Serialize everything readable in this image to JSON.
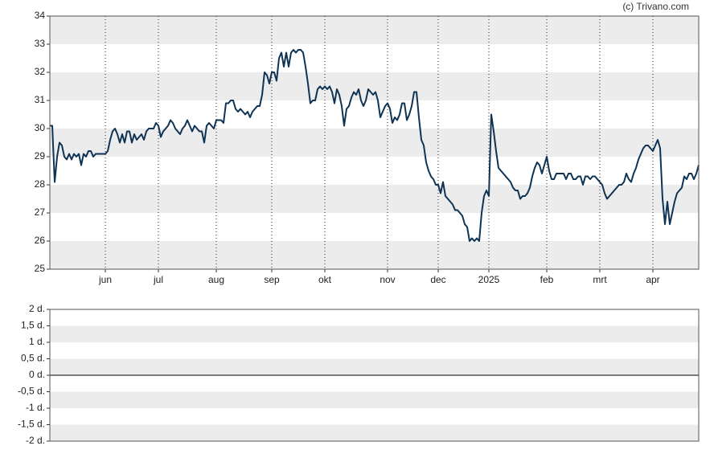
{
  "source": "(c) Trivano.com",
  "chart_data": [
    {
      "type": "line",
      "xlim": [
        0,
        269
      ],
      "xticks": [
        {
          "value": 23,
          "label": "jun"
        },
        {
          "value": 45,
          "label": "jul"
        },
        {
          "value": 69,
          "label": "aug"
        },
        {
          "value": 92,
          "label": "sep"
        },
        {
          "value": 114,
          "label": "okt"
        },
        {
          "value": 140,
          "label": "nov"
        },
        {
          "value": 161,
          "label": "dec"
        },
        {
          "value": 182,
          "label": "2025"
        },
        {
          "value": 206,
          "label": "feb"
        },
        {
          "value": 228,
          "label": "mrt"
        },
        {
          "value": 250,
          "label": "apr"
        }
      ],
      "ylim": [
        25,
        34
      ],
      "yticks": [
        25,
        26,
        27,
        28,
        29,
        30,
        31,
        32,
        33,
        34
      ],
      "grid": true,
      "color": "#0e3354",
      "values": [
        30.1,
        30.1,
        28.1,
        29,
        29.5,
        29.4,
        29,
        28.9,
        29.1,
        28.9,
        29.1,
        29,
        29.1,
        28.7,
        29.1,
        29,
        29.2,
        29.2,
        29,
        29.1,
        29.1,
        29.1,
        29.1,
        29.1,
        29.2,
        29.6,
        29.9,
        30,
        29.8,
        29.5,
        29.8,
        29.5,
        29.9,
        29.9,
        29.5,
        29.8,
        29.6,
        29.7,
        29.8,
        29.6,
        29.9,
        30,
        30,
        30,
        30.2,
        30.1,
        29.7,
        29.9,
        30,
        30.1,
        30.3,
        30.2,
        30,
        29.9,
        29.8,
        30,
        30.1,
        30.3,
        30.1,
        29.9,
        30.1,
        30,
        29.9,
        29.9,
        29.5,
        30.1,
        30.2,
        30.1,
        30,
        30.3,
        30.3,
        30.3,
        30.2,
        30.9,
        30.9,
        31,
        31,
        30.7,
        30.6,
        30.7,
        30.6,
        30.5,
        30.6,
        30.4,
        30.6,
        30.7,
        30.8,
        30.8,
        31.2,
        32,
        31.9,
        31.6,
        32,
        32,
        31.7,
        32.5,
        32.7,
        32.2,
        32.7,
        32.2,
        32.7,
        32.8,
        32.7,
        32.8,
        32.8,
        32.7,
        32.2,
        31.6,
        30.9,
        31,
        31,
        31.4,
        31.5,
        31.4,
        31.5,
        31.4,
        31.5,
        31.3,
        30.9,
        31.4,
        31.2,
        30.8,
        30.1,
        30.7,
        30.8,
        31.1,
        31.3,
        31.2,
        31.4,
        31,
        30.8,
        31,
        31.4,
        31.3,
        31.2,
        31.3,
        31,
        30.4,
        30.6,
        30.8,
        30.9,
        30.7,
        30.2,
        30.4,
        30.3,
        30.5,
        30.9,
        30.9,
        30.3,
        30.5,
        30.8,
        31.3,
        31.3,
        30.4,
        29.6,
        29.4,
        28.8,
        28.5,
        28.3,
        28.2,
        28,
        28,
        27.7,
        28.1,
        27.6,
        27.5,
        27.4,
        27.3,
        27.1,
        27.1,
        27,
        26.9,
        26.6,
        26.5,
        26,
        26.1,
        26,
        26.1,
        26,
        27,
        27.6,
        27.8,
        27.6,
        30.5,
        29.9,
        29.2,
        28.6,
        28.5,
        28.4,
        28.3,
        28.2,
        28.1,
        27.9,
        27.8,
        27.8,
        27.5,
        27.6,
        27.6,
        27.7,
        27.9,
        28.3,
        28.6,
        28.8,
        28.7,
        28.4,
        28.7,
        29,
        28.5,
        28.2,
        28.2,
        28.4,
        28.4,
        28.4,
        28.4,
        28.2,
        28.4,
        28.4,
        28.2,
        28.2,
        28.3,
        28.3,
        28,
        28.3,
        28.3,
        28.2,
        28.3,
        28.3,
        28.2,
        28.1,
        28,
        27.7,
        27.5,
        27.6,
        27.7,
        27.8,
        27.9,
        28,
        28,
        28.1,
        28.4,
        28.2,
        28.1,
        28.4,
        28.6,
        28.9,
        29.1,
        29.3,
        29.4,
        29.4,
        29.3,
        29.2,
        29.4,
        29.6,
        29.3,
        27.5,
        26.6,
        27.4,
        26.6,
        27,
        27.4,
        27.7,
        27.8,
        27.9,
        28.3,
        28.2,
        28.4,
        28.4,
        28.2,
        28.4,
        28.7
      ]
    },
    {
      "type": "bar",
      "ylim": [
        -2,
        2
      ],
      "yticks": [
        {
          "value": -2,
          "label": "-2 d."
        },
        {
          "value": -1.5,
          "label": "-1,5 d."
        },
        {
          "value": -1,
          "label": "-1 d."
        },
        {
          "value": -0.5,
          "label": "-0,5 d."
        },
        {
          "value": 0,
          "label": "0 d."
        },
        {
          "value": 0.5,
          "label": "0,5 d."
        },
        {
          "value": 1,
          "label": "1 d."
        },
        {
          "value": 1.5,
          "label": "1,5 d."
        },
        {
          "value": 2,
          "label": "2 d."
        }
      ],
      "grid": true
    }
  ]
}
